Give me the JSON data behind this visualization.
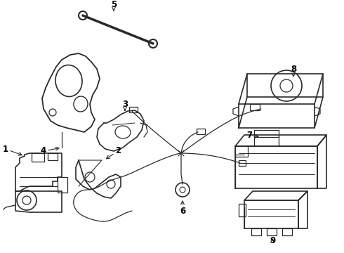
{
  "bg_color": "#ffffff",
  "line_color": "#2a2a2a",
  "label_color": "#000000",
  "lfs": 8.5,
  "fig_width": 4.9,
  "fig_height": 3.6,
  "dpi": 100
}
